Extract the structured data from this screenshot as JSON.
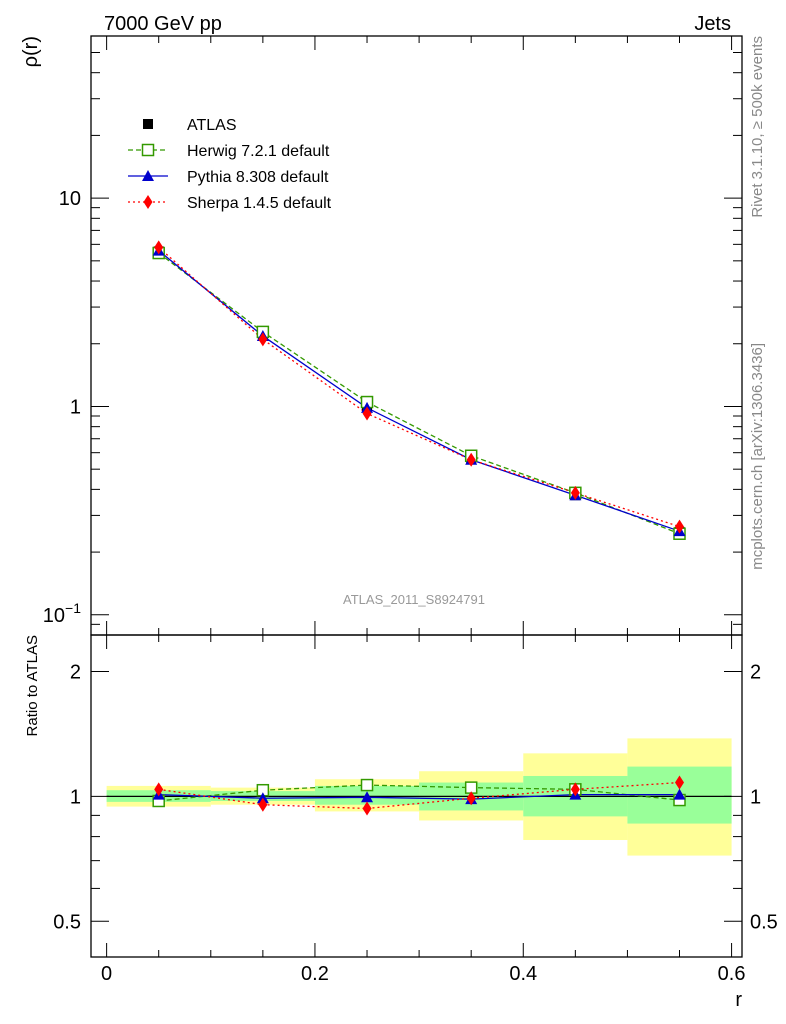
{
  "header": {
    "left": "7000 GeV pp",
    "right": "Jets"
  },
  "side_text": {
    "rivet": "Rivet 3.1.10, ≥ 500k events",
    "source": "mcplots.cern.ch [arXiv:1306.3436]"
  },
  "analysis_label": "ATLAS_2011_S8924791",
  "colors": {
    "atlas": "#000000",
    "herwig": "#339900",
    "pythia": "#0000cc",
    "sherpa": "#ff0000",
    "band_inner": "#99ff99",
    "band_outer": "#ffff99"
  },
  "chart_data": [
    {
      "type": "line",
      "ylabel": "ρ(r)",
      "yscale": "log",
      "ylim": [
        0.08,
        60
      ],
      "xlim": [
        -0.015,
        0.61
      ],
      "y_ticks": [
        {
          "value": 0.1,
          "base": "10",
          "exp": "−1"
        },
        {
          "value": 1,
          "label": "1"
        },
        {
          "value": 10,
          "label": "10"
        }
      ],
      "x": [
        0.05,
        0.15,
        0.25,
        0.35,
        0.45,
        0.55
      ],
      "series": [
        {
          "name": "ATLAS",
          "values": [
            5.55,
            2.2,
            0.99,
            0.56,
            0.375,
            0.25
          ]
        },
        {
          "name": "Herwig 7.2.1 default",
          "values": [
            5.45,
            2.28,
            1.05,
            0.58,
            0.385,
            0.245
          ]
        },
        {
          "name": "Pythia 8.308 default",
          "values": [
            5.6,
            2.18,
            0.985,
            0.555,
            0.375,
            0.252
          ]
        },
        {
          "name": "Sherpa 1.4.5 default",
          "values": [
            5.8,
            2.1,
            0.925,
            0.555,
            0.385,
            0.265
          ]
        }
      ],
      "legend_position": "top-left"
    },
    {
      "type": "line",
      "ylabel": "Ratio to ATLAS",
      "xlabel": "r",
      "yscale": "log",
      "ylim": [
        0.41,
        2.45
      ],
      "xlim": [
        -0.015,
        0.61
      ],
      "y_ticks": [
        {
          "value": 0.5,
          "label": "0.5"
        },
        {
          "value": 1,
          "label": "1"
        },
        {
          "value": 2,
          "label": "2"
        }
      ],
      "x_ticks": [
        {
          "value": 0,
          "label": "0"
        },
        {
          "value": 0.2,
          "label": "0.2"
        },
        {
          "value": 0.4,
          "label": "0.4"
        },
        {
          "value": 0.6,
          "label": "0.6"
        }
      ],
      "bin_edges": [
        0,
        0.1,
        0.2,
        0.3,
        0.4,
        0.5,
        0.6
      ],
      "band_inner": [
        [
          0.97,
          1.035
        ],
        [
          0.975,
          1.03
        ],
        [
          0.955,
          1.06
        ],
        [
          0.925,
          1.08
        ],
        [
          0.895,
          1.12
        ],
        [
          0.86,
          1.18
        ]
      ],
      "band_outer": [
        [
          0.945,
          1.06
        ],
        [
          0.955,
          1.05
        ],
        [
          0.92,
          1.1
        ],
        [
          0.875,
          1.15
        ],
        [
          0.785,
          1.27
        ],
        [
          0.72,
          1.38
        ]
      ],
      "x": [
        0.05,
        0.15,
        0.25,
        0.35,
        0.45,
        0.55
      ],
      "series": [
        {
          "name": "Herwig 7.2.1 default",
          "values": [
            0.975,
            1.035,
            1.065,
            1.05,
            1.04,
            0.98
          ]
        },
        {
          "name": "Pythia 8.308 default",
          "values": [
            1.01,
            0.99,
            0.995,
            0.985,
            1.01,
            1.01
          ]
        },
        {
          "name": "Sherpa 1.4.5 default",
          "values": [
            1.04,
            0.955,
            0.935,
            0.99,
            1.04,
            1.08
          ]
        }
      ],
      "reference_line": 1
    }
  ]
}
